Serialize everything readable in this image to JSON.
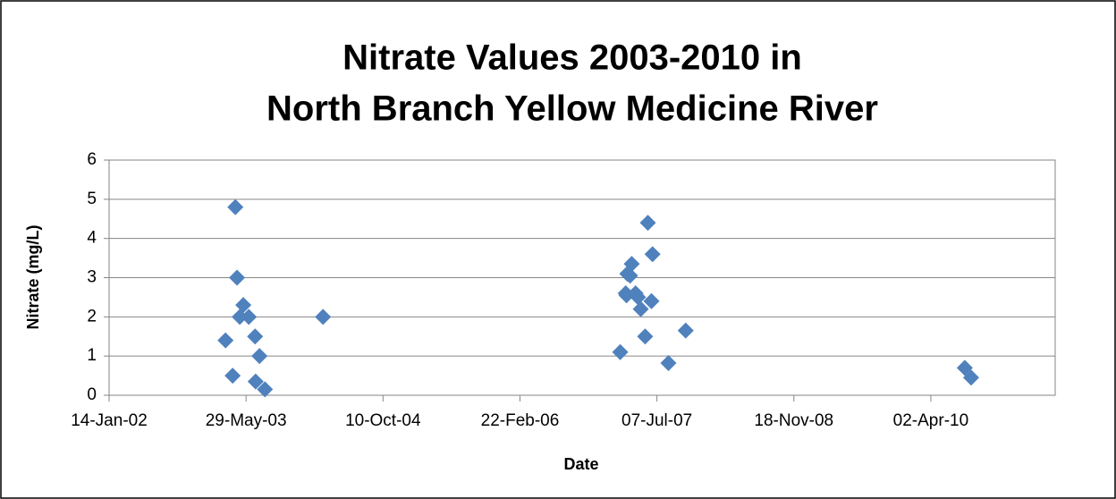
{
  "chart_data": {
    "type": "scatter",
    "title": [
      "Nitrate Values 2003-2010 in",
      "North Branch Yellow Medicine River"
    ],
    "x_label": "Date",
    "y_label": "Nitrate (mg/L)",
    "series": [
      {
        "name": "Nitrate",
        "color": "#4f81bd",
        "x": [
          "2003-03-15",
          "2003-04-20",
          "2003-04-10",
          "2003-04-26",
          "2003-05-19",
          "2003-05-06",
          "2003-06-08",
          "2003-07-01",
          "2003-07-03",
          "2003-07-17",
          "2003-08-06",
          "2004-03-05",
          "2007-02-23",
          "2007-03-15",
          "2007-03-21",
          "2007-03-18",
          "2007-04-06",
          "2007-03-31",
          "2007-04-20",
          "2007-04-29",
          "2007-05-09",
          "2007-05-25",
          "2007-06-04",
          "2007-06-21",
          "2007-06-17",
          "2007-08-18",
          "2007-10-20",
          "2010-08-04",
          "2010-08-27"
        ],
        "values": [
          1.4,
          4.8,
          0.5,
          3.0,
          2.3,
          2.0,
          2.0,
          1.5,
          0.35,
          1.0,
          0.15,
          2.0,
          1.1,
          2.6,
          3.1,
          2.55,
          3.35,
          3.05,
          2.6,
          2.5,
          2.2,
          1.5,
          4.4,
          3.6,
          2.4,
          0.82,
          1.65,
          0.7,
          0.45
        ]
      }
    ],
    "xlim": [
      "2002-01-14",
      "2011-06-30"
    ],
    "xticks": [
      {
        "value": "2002-01-14",
        "label": "14-Jan-02"
      },
      {
        "value": "2003-05-29",
        "label": "29-May-03"
      },
      {
        "value": "2004-10-10",
        "label": "10-Oct-04"
      },
      {
        "value": "2006-02-22",
        "label": "22-Feb-06"
      },
      {
        "value": "2007-07-07",
        "label": "07-Jul-07"
      },
      {
        "value": "2008-11-18",
        "label": "18-Nov-08"
      },
      {
        "value": "2010-04-02",
        "label": "02-Apr-10"
      }
    ],
    "ylim": [
      0,
      6
    ],
    "yticks": [
      0,
      1,
      2,
      3,
      4,
      5,
      6
    ],
    "grid": true
  }
}
